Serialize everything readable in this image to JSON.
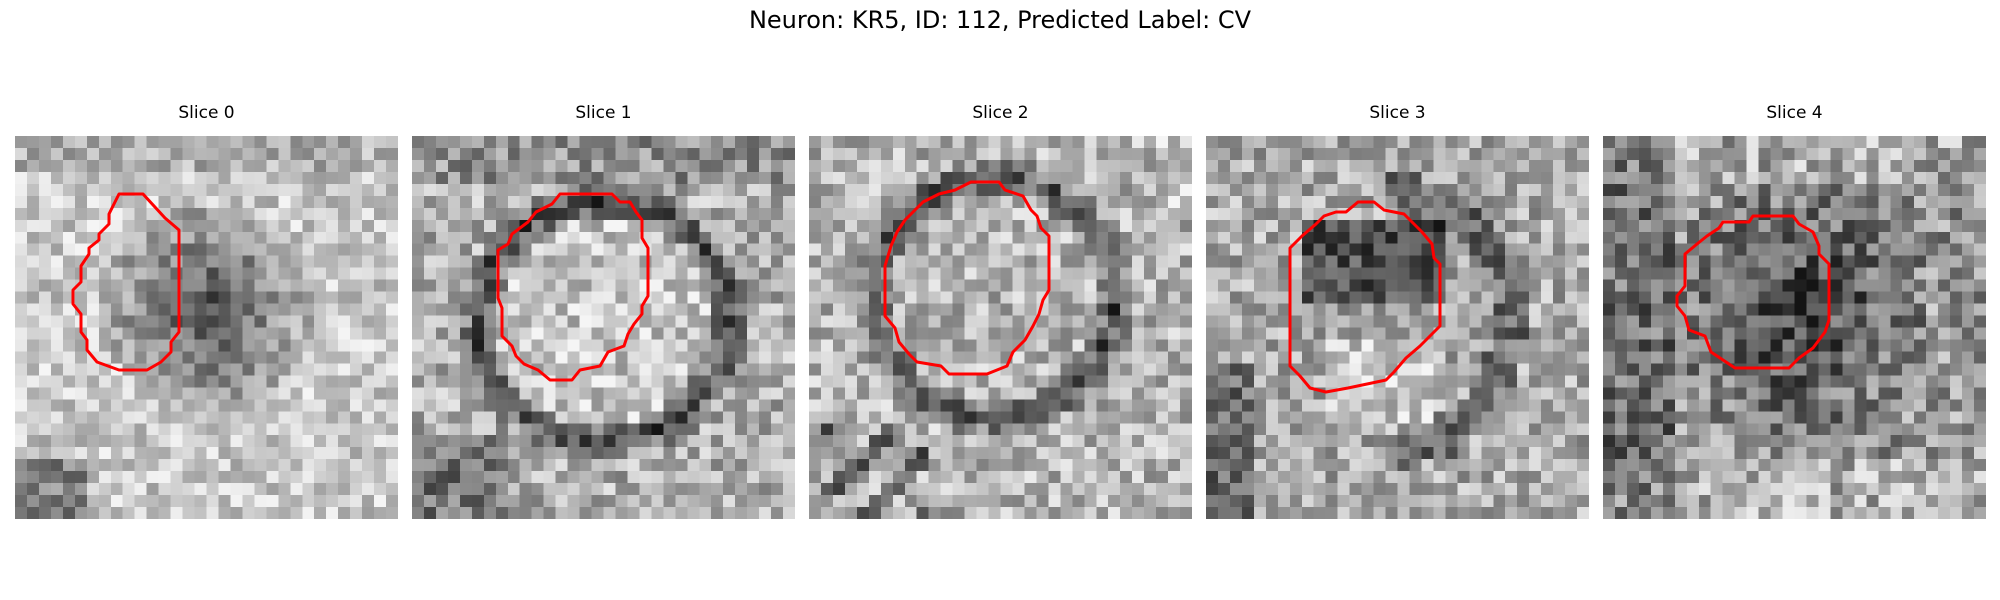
{
  "figure": {
    "title": "Neuron: KR5, ID: 112, Predicted Label: CV"
  },
  "colors": {
    "contour": "#ff0000",
    "background": "#ffffff"
  },
  "panels": [
    {
      "title": "Slice 0"
    },
    {
      "title": "Slice 1"
    },
    {
      "title": "Slice 2"
    },
    {
      "title": "Slice 3"
    },
    {
      "title": "Slice 4"
    }
  ]
}
